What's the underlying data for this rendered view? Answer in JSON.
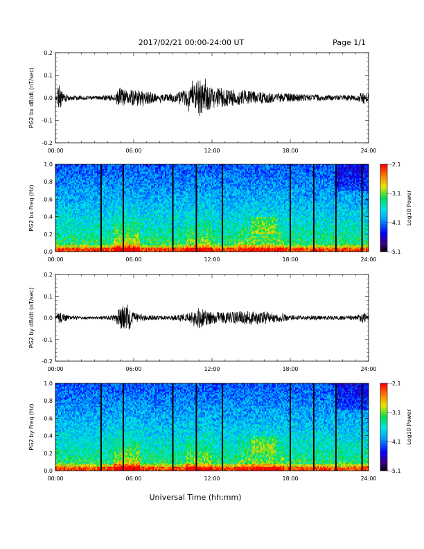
{
  "header": {
    "date_range": "2017/02/21  00:00-24:00 UT",
    "page": "Page 1/1"
  },
  "x_axis_label": "Universal Time (hh:mm)",
  "colorbar": {
    "label": "Log10 Power",
    "ticks": [
      "-2.1",
      "-3.1",
      "-4.1",
      "-5.1"
    ],
    "range": [
      -5.1,
      -2.1
    ]
  },
  "chart_data": [
    {
      "type": "line",
      "ylabel": "PG2 bx dB/dt (nT/sec)",
      "xlim": [
        0,
        24
      ],
      "x_ticks": [
        "00:00",
        "06:00",
        "12:00",
        "18:00",
        "24:00"
      ],
      "ylim": [
        -0.2,
        0.2
      ],
      "y_ticks": [
        "0.2",
        "0.1",
        "0.0",
        "-0.1",
        "-0.2"
      ],
      "envelope": {
        "hours": [
          0,
          0.3,
          0.5,
          1,
          2,
          3,
          4,
          4.5,
          5,
          5.5,
          6,
          7,
          8,
          9,
          10,
          10.5,
          11,
          11.5,
          12,
          13,
          14,
          15,
          16,
          17,
          18,
          19,
          20,
          21,
          22,
          23,
          23.7,
          24
        ],
        "amplitude": [
          0.005,
          0.06,
          0.03,
          0.012,
          0.01,
          0.008,
          0.012,
          0.02,
          0.05,
          0.03,
          0.04,
          0.03,
          0.015,
          0.02,
          0.04,
          0.05,
          0.08,
          0.06,
          0.05,
          0.04,
          0.035,
          0.03,
          0.025,
          0.02,
          0.02,
          0.015,
          0.015,
          0.012,
          0.012,
          0.012,
          0.03,
          0.015
        ]
      }
    },
    {
      "type": "heatmap",
      "ylabel": "PG2 bx Freq (Hz)",
      "xlim": [
        0,
        24
      ],
      "x_ticks": [
        "00:00",
        "06:00",
        "12:00",
        "18:00",
        "24:00"
      ],
      "ylim": [
        0,
        1
      ],
      "y_ticks": [
        "1.0",
        "0.8",
        "0.6",
        "0.4",
        "0.2",
        "0.0"
      ],
      "zlim": [
        -5.1,
        -2.1
      ],
      "gap_hours": [
        3.5,
        5.2,
        9.0,
        10.8,
        12.8,
        18.0,
        19.8,
        21.5,
        23.5
      ]
    },
    {
      "type": "line",
      "ylabel": "PG2 by dB/dt (nT/sec)",
      "xlim": [
        0,
        24
      ],
      "x_ticks": [
        "00:00",
        "06:00",
        "12:00",
        "18:00",
        "24:00"
      ],
      "ylim": [
        -0.2,
        0.2
      ],
      "y_ticks": [
        "0.2",
        "0.1",
        "0.0",
        "-0.1",
        "-0.2"
      ],
      "envelope": {
        "hours": [
          0,
          0.3,
          0.5,
          1,
          2,
          3,
          4,
          4.5,
          5,
          5.5,
          6,
          7,
          8,
          9,
          10,
          10.5,
          11,
          11.5,
          12,
          13,
          14,
          15,
          16,
          17,
          18,
          19,
          20,
          21,
          22,
          23,
          23.7,
          24
        ],
        "amplitude": [
          0.005,
          0.03,
          0.02,
          0.01,
          0.008,
          0.006,
          0.01,
          0.015,
          0.05,
          0.07,
          0.025,
          0.012,
          0.01,
          0.01,
          0.02,
          0.03,
          0.05,
          0.035,
          0.03,
          0.025,
          0.03,
          0.035,
          0.03,
          0.02,
          0.012,
          0.01,
          0.01,
          0.01,
          0.01,
          0.01,
          0.025,
          0.01
        ]
      }
    },
    {
      "type": "heatmap",
      "ylabel": "PG2 by Freq (Hz)",
      "xlim": [
        0,
        24
      ],
      "x_ticks": [
        "00:00",
        "06:00",
        "12:00",
        "18:00",
        "24:00"
      ],
      "ylim": [
        0,
        1
      ],
      "y_ticks": [
        "1.0",
        "0.8",
        "0.6",
        "0.4",
        "0.2",
        "0.0"
      ],
      "zlim": [
        -5.1,
        -2.1
      ],
      "gap_hours": [
        3.5,
        5.2,
        9.0,
        10.8,
        12.8,
        18.0,
        19.8,
        21.5,
        23.5
      ]
    }
  ]
}
